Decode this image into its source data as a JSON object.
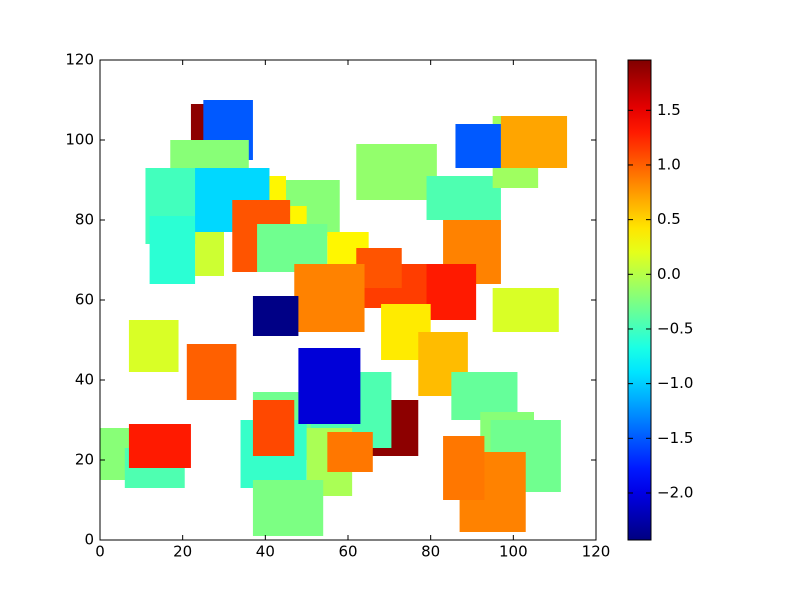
{
  "chart_data": {
    "type": "rectangles",
    "colormap": "jet",
    "x": [
      22,
      25,
      17,
      11,
      23,
      12,
      23,
      41,
      45,
      46,
      32,
      38,
      55,
      62,
      79,
      95,
      86,
      97,
      83,
      78,
      60,
      62,
      47,
      37,
      95,
      68,
      77,
      7,
      21,
      85,
      92,
      94.5,
      87,
      83,
      0,
      6,
      7,
      62,
      50,
      37,
      34,
      50,
      48,
      37,
      55,
      37
    ],
    "y": [
      95,
      95,
      85,
      74,
      66,
      64,
      77,
      85,
      76,
      77.5,
      67,
      67,
      68,
      85,
      80,
      88,
      93,
      93,
      64,
      55,
      58,
      63,
      52,
      51,
      52,
      45,
      36,
      42,
      35,
      30,
      21,
      12,
      2,
      10,
      15,
      13,
      18,
      21,
      23,
      20,
      13,
      11,
      29,
      21,
      17,
      1
    ],
    "width": [
      12,
      12,
      19,
      14,
      7,
      11,
      18,
      4,
      13,
      4,
      14,
      17,
      10,
      19.5,
      18,
      11,
      11,
      16,
      14,
      13,
      19,
      11,
      17,
      11,
      16,
      12,
      12,
      12,
      12,
      16,
      13,
      17,
      16,
      10,
      12,
      14.5,
      15,
      15,
      20.5,
      14,
      16,
      11,
      15,
      10,
      11,
      17
    ],
    "height": [
      14,
      15,
      15,
      19,
      12,
      17,
      16,
      6,
      14,
      6,
      18,
      12,
      9,
      14,
      11,
      18,
      11,
      13,
      16,
      14,
      11,
      10,
      17,
      10,
      11,
      14,
      16,
      13,
      14,
      12,
      11,
      18,
      20,
      16,
      13,
      10,
      11,
      14,
      19,
      17,
      17,
      17,
      19,
      14,
      10,
      14
    ],
    "values": [
      1.9,
      -1.5,
      -0.2,
      -0.5,
      0.1,
      -0.6,
      -0.95,
      0.35,
      -0.2,
      0.35,
      1.05,
      -0.3,
      0.35,
      -0.15,
      -0.45,
      -0.1,
      -1.5,
      0.7,
      0.85,
      1.3,
      1.15,
      1.05,
      0.85,
      -2.4,
      0.15,
      0.4,
      0.6,
      0.15,
      1.0,
      -0.35,
      -0.2,
      -0.3,
      0.85,
      0.9,
      -0.2,
      -0.45,
      1.3,
      1.9,
      -0.45,
      -0.3,
      -0.55,
      -0.05,
      -2.05,
      1.1,
      0.9,
      -0.25
    ],
    "xlim": [
      0,
      120
    ],
    "xticks": [
      0,
      20,
      40,
      60,
      80,
      100,
      120
    ],
    "ylim": [
      0,
      120
    ],
    "yticks": [
      0,
      20,
      40,
      60,
      80,
      100,
      120
    ],
    "clim": [
      -2.43,
      1.96
    ],
    "cticks": [
      {
        "value": -2.0,
        "label": "−2.0"
      },
      {
        "value": -1.5,
        "label": "−1.5"
      },
      {
        "value": -1.0,
        "label": "−1.0"
      },
      {
        "value": -0.5,
        "label": "−0.5"
      },
      {
        "value": 0,
        "label": "0.0"
      },
      0.5,
      {
        "value": 1.0,
        "label": "1.0"
      },
      1.5
    ]
  }
}
